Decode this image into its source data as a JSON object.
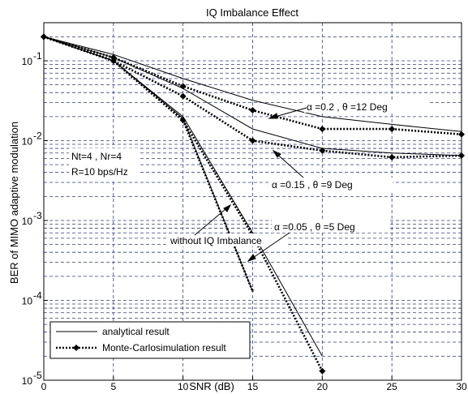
{
  "chart_data": {
    "type": "line",
    "title": "IQ Imbalance Effect",
    "xlabel": "SNR (dB)",
    "ylabel": "BER of MIMO adaptive modulation",
    "yscale": "log",
    "xlim": [
      0,
      30
    ],
    "ylim": [
      1e-05,
      0.3
    ],
    "grid": true,
    "x_ticks": [
      0,
      5,
      10,
      15,
      20,
      25,
      30
    ],
    "x_tick_labels": [
      "0",
      "5",
      "10",
      "15",
      "20",
      "25",
      "30"
    ],
    "y_ticks": [
      1e-05,
      0.0001,
      0.001,
      0.01,
      0.1
    ],
    "y_tick_labels": [
      {
        "base": "10",
        "exp": "-5"
      },
      {
        "base": "10",
        "exp": "-4"
      },
      {
        "base": "10",
        "exp": "-3"
      },
      {
        "base": "10",
        "exp": "-2"
      },
      {
        "base": "10",
        "exp": "-1"
      }
    ],
    "legend": {
      "placement": "bottom-left",
      "entries": [
        {
          "label": "analytical result",
          "style": "solid"
        },
        {
          "label": "Monte-Carlosimulation result",
          "style": "dotted-diamond"
        }
      ]
    },
    "series": [
      {
        "style": "solid",
        "group": "a0.2",
        "x": [
          0,
          5,
          10,
          15,
          20,
          25,
          30
        ],
        "y": [
          0.2,
          0.12,
          0.06,
          0.032,
          0.02,
          0.016,
          0.013
        ]
      },
      {
        "style": "dotted-diamond",
        "group": "a0.2",
        "x": [
          0,
          5,
          10,
          15,
          20,
          25,
          30
        ],
        "y": [
          0.2,
          0.11,
          0.048,
          0.024,
          0.014,
          0.014,
          0.012
        ]
      },
      {
        "style": "solid",
        "group": "a0.15",
        "x": [
          0,
          5,
          10,
          15,
          20,
          25,
          30
        ],
        "y": [
          0.2,
          0.11,
          0.045,
          0.014,
          0.008,
          0.007,
          0.0065
        ]
      },
      {
        "style": "dotted-diamond",
        "group": "a0.15",
        "x": [
          0,
          5,
          10,
          15,
          20,
          25,
          30
        ],
        "y": [
          0.2,
          0.1,
          0.036,
          0.01,
          0.0075,
          0.0062,
          0.0065
        ]
      },
      {
        "style": "solid",
        "group": "a0.05",
        "x": [
          0,
          5,
          10,
          15,
          20
        ],
        "y": [
          0.2,
          0.1,
          0.02,
          0.0007,
          2e-05
        ]
      },
      {
        "style": "dotted-diamond",
        "group": "a0.05",
        "x": [
          0,
          5,
          10,
          15,
          20
        ],
        "y": [
          0.2,
          0.1,
          0.018,
          0.00065,
          1.3e-05
        ]
      },
      {
        "style": "solid",
        "group": "noIQ",
        "x": [
          0,
          5,
          10,
          15
        ],
        "y": [
          0.2,
          0.1,
          0.019,
          0.00013
        ]
      },
      {
        "style": "dotted",
        "group": "noIQ",
        "x": [
          0,
          5,
          10,
          15
        ],
        "y": [
          0.2,
          0.1,
          0.018,
          0.00013
        ]
      }
    ],
    "annotations": [
      {
        "text": "α =0.2 , θ =12 Deg"
      },
      {
        "text": "α =0.15 , θ =9 Deg"
      },
      {
        "text": "α =0.05 , θ =5 Deg"
      },
      {
        "text": "without IQ Imbalance"
      },
      {
        "text": "Nt=4 , Nr=4"
      },
      {
        "text": "R=10 bps/Hz"
      }
    ]
  }
}
